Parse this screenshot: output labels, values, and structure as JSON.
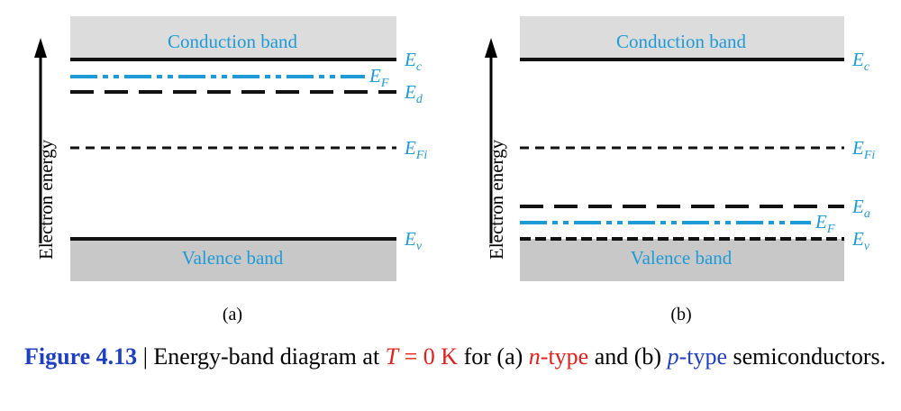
{
  "colors": {
    "band_fill": "#dcdcdc",
    "valence_fill": "#c8c8c8",
    "line": "#111111",
    "fermi": "#1e9bd7",
    "caption_blue": "#1f3fc2",
    "caption_red": "#e3201b"
  },
  "panels": [
    {
      "id": "a",
      "conduction_label": "Conduction band",
      "valence_label": "Valence band",
      "axis_label": "Electron energy",
      "sublabel": "(a)",
      "levels": {
        "ec": {
          "sym": "E",
          "sub": "c"
        },
        "ef": {
          "sym": "E",
          "sub": "F"
        },
        "ed": {
          "sym": "E",
          "sub": "d"
        },
        "efi": {
          "sym": "E",
          "sub": "Fi"
        },
        "ev": {
          "sym": "E",
          "sub": "v"
        }
      }
    },
    {
      "id": "b",
      "conduction_label": "Conduction band",
      "valence_label": "Valence band",
      "axis_label": "Electron energy",
      "sublabel": "(b)",
      "levels": {
        "ec": {
          "sym": "E",
          "sub": "c"
        },
        "efi": {
          "sym": "E",
          "sub": "Fi"
        },
        "ea": {
          "sym": "E",
          "sub": "a"
        },
        "ef": {
          "sym": "E",
          "sub": "F"
        },
        "ev": {
          "sym": "E",
          "sub": "v"
        }
      }
    }
  ],
  "caption": {
    "fig_num": "Figure 4.13",
    "sep": " | ",
    "t1": "Energy-band diagram at ",
    "T": "T",
    "t2": " = 0 K",
    "t3": " for (a) ",
    "n": "n",
    "ntype": "-type",
    "t4": " and (b) ",
    "p": "p",
    "ptype": "-type",
    "t5": " semiconductors."
  }
}
